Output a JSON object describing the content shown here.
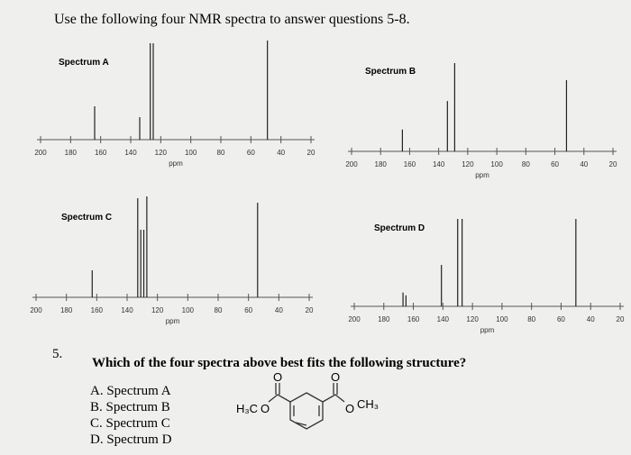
{
  "title": "Use the following four NMR spectra to answer questions 5-8.",
  "chart_data": [
    {
      "type": "stem",
      "title": "Spectrum A",
      "xlabel": "ppm",
      "xlim": [
        200,
        20
      ],
      "xticks": [
        200,
        180,
        160,
        140,
        120,
        100,
        80,
        60,
        40,
        20
      ],
      "x": [
        164,
        134,
        127,
        125,
        49
      ],
      "values": [
        37,
        25,
        107,
        107,
        110
      ]
    },
    {
      "type": "stem",
      "title": "Spectrum B",
      "xlabel": "ppm",
      "xlim": [
        200,
        20
      ],
      "xticks": [
        200,
        180,
        160,
        140,
        120,
        100,
        80,
        60,
        40,
        20
      ],
      "x": [
        165,
        134,
        129,
        52
      ],
      "values": [
        23,
        53,
        93,
        75
      ]
    },
    {
      "type": "stem",
      "title": "Spectrum C",
      "xlabel": "ppm",
      "xlim": [
        200,
        20
      ],
      "xticks": [
        200,
        180,
        160,
        140,
        120,
        100,
        80,
        60,
        40,
        20
      ],
      "x": [
        163,
        133,
        131,
        129,
        127,
        54
      ],
      "values": [
        30,
        110,
        75,
        75,
        112,
        105
      ]
    },
    {
      "type": "stem",
      "title": "Spectrum D",
      "xlabel": "ppm",
      "xlim": [
        200,
        20
      ],
      "xticks": [
        200,
        180,
        160,
        140,
        120,
        100,
        80,
        60,
        40,
        20
      ],
      "x": [
        167,
        165,
        141,
        130,
        127,
        50
      ],
      "values": [
        15,
        12,
        45,
        95,
        95,
        95
      ]
    }
  ],
  "question": {
    "number": "5.",
    "text": "Which of the four spectra above best fits the following structure?",
    "options": [
      "A. Spectrum A",
      "B. Spectrum B",
      "C. Spectrum C",
      "D. Spectrum D"
    ]
  },
  "structure": {
    "left_methyl": "H₃C",
    "left_ester_o": "O",
    "left_carbonyl_o": "O",
    "right_carbonyl_o": "O",
    "right_ester_o": "O",
    "right_methyl": "CH₃"
  }
}
